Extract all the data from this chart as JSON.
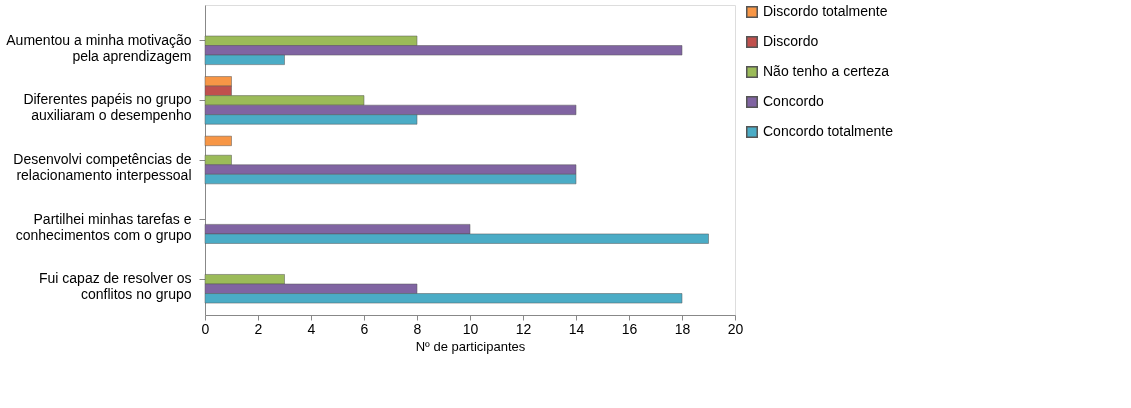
{
  "chart_data": {
    "type": "bar",
    "orientation": "horizontal",
    "xlabel": "Nº de participantes",
    "categories": [
      "Aumentou a minha motivação pela aprendizagem",
      "Diferentes papéis no grupo auxiliaram o desempenho",
      "Desenvolvi competências de relacionamento interpessoal",
      "Partilhei minhas tarefas  e conhecimentos com o grupo",
      "Fui capaz de resolver os conflitos no grupo"
    ],
    "series": [
      {
        "name": "Discordo totalmente",
        "color": "#f79646",
        "values": [
          null,
          1,
          1,
          null,
          null
        ]
      },
      {
        "name": "Discordo",
        "color": "#c0504d",
        "values": [
          null,
          1,
          null,
          null,
          null
        ]
      },
      {
        "name": "Não tenho a certeza",
        "color": "#9bbb59",
        "values": [
          8,
          6,
          1,
          null,
          3
        ]
      },
      {
        "name": "Concordo",
        "color": "#8064a2",
        "values": [
          18,
          14,
          14,
          10,
          8
        ]
      },
      {
        "name": "Concordo totalmente",
        "color": "#4bacc6",
        "values": [
          3,
          8,
          14,
          19,
          18
        ]
      }
    ],
    "xlim": [
      0,
      20
    ],
    "xticks": [
      0,
      2,
      4,
      6,
      8,
      10,
      12,
      14,
      16,
      18,
      20
    ],
    "grid": false,
    "legend": "right"
  }
}
